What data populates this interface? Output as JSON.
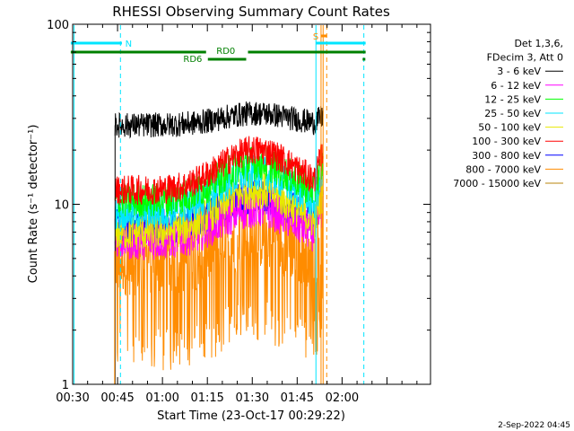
{
  "chart_data": {
    "type": "line",
    "title": "RHESSI Observing Summary Count Rates",
    "xlabel": "Start Time (23-Oct-17 00:29:22)",
    "ylabel": "Count Rate (s⁻¹ detector⁻¹)",
    "y_scale": "log",
    "ylim": [
      1,
      100
    ],
    "xlim_minutes": [
      0.63,
      120.17
    ],
    "x_ticks": [
      {
        "label": "00:30",
        "min": 0.63
      },
      {
        "label": "00:45",
        "min": 15.63
      },
      {
        "label": "01:00",
        "min": 30.63
      },
      {
        "label": "01:15",
        "min": 45.63
      },
      {
        "label": "01:30",
        "min": 60.63
      },
      {
        "label": "01:45",
        "min": 75.63
      },
      {
        "label": "02:00",
        "min": 90.63
      }
    ],
    "y_ticks": [
      {
        "label": "1",
        "value": 1
      },
      {
        "label": "10",
        "value": 10
      },
      {
        "label": "100",
        "value": 100
      }
    ],
    "legend_header": [
      "Det 1,3,6,",
      "FDecim 3, Att 0"
    ],
    "legend_position": "right",
    "series": [
      {
        "name": "3 - 6 keV",
        "color": "#000000",
        "base": 27.5,
        "peak": 32,
        "noise": 0.1
      },
      {
        "name": "6 - 12 keV",
        "color": "#ff00ff",
        "base": 6.3,
        "peak": 9.5,
        "noise": 0.16
      },
      {
        "name": "12 - 25 keV",
        "color": "#00ff00",
        "base": 10.5,
        "peak": 17,
        "noise": 0.14
      },
      {
        "name": "25 - 50 keV",
        "color": "#00e5ff",
        "base": 9.0,
        "peak": 15,
        "noise": 0.14
      },
      {
        "name": "50 - 100 keV",
        "color": "#e8e800",
        "base": 7.0,
        "peak": 12,
        "noise": 0.15
      },
      {
        "name": "100 - 300 keV",
        "color": "#ff0000",
        "base": 12.0,
        "peak": 20,
        "noise": 0.12
      },
      {
        "name": "300 - 800 keV",
        "color": "#0000ff",
        "base": 7.5,
        "peak": 11,
        "noise": 0.14
      },
      {
        "name": "800 - 7000 keV",
        "color": "#ff8c00",
        "base": 5.0,
        "peak": 7,
        "noise": 0.3
      },
      {
        "name": "7000 - 15000 keV",
        "color": "#b8860b",
        "base": 0,
        "peak": 0,
        "noise": 0
      }
    ],
    "data_window_minutes": [
      14.8,
      84.3
    ],
    "flag_labels": [
      "N",
      "S",
      "RD0",
      "RD6"
    ],
    "annotations": [
      {
        "label": "N",
        "color": "#00e5ff"
      },
      {
        "label": "S",
        "color": "#ff8c00"
      },
      {
        "label": "RD0",
        "color": "#008000"
      },
      {
        "label": "RD6",
        "color": "#008000"
      }
    ]
  },
  "footer_date": "2-Sep-2022 04:45"
}
